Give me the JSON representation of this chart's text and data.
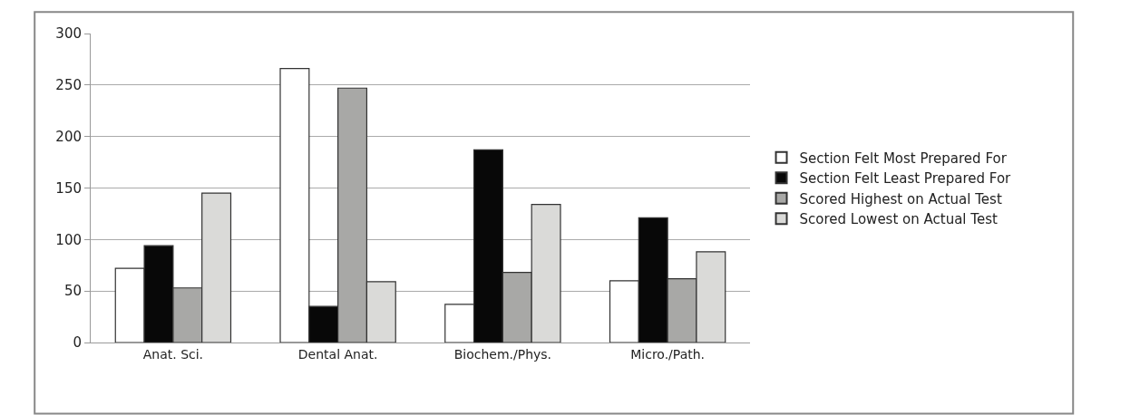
{
  "chart_data": {
    "type": "bar",
    "categories": [
      "Anat. Sci.",
      "Dental Anat.",
      "Biochem./Phys.",
      "Micro./Path."
    ],
    "series": [
      {
        "name": "Section Felt Most Prepared For",
        "color": "#ffffff",
        "values": [
          72,
          266,
          37,
          60
        ]
      },
      {
        "name": "Section Felt Least Prepared For",
        "color": "#080808",
        "values": [
          94,
          35,
          187,
          121
        ]
      },
      {
        "name": "Scored Highest on Actual Test",
        "color": "#a8a8a6",
        "values": [
          53,
          247,
          68,
          62
        ]
      },
      {
        "name": "Scored Lowest on Actual Test",
        "color": "#dadad8",
        "values": [
          145,
          59,
          134,
          88
        ]
      }
    ],
    "ylim": [
      0,
      300
    ],
    "yticks": [
      0,
      50,
      100,
      150,
      200,
      250,
      300
    ],
    "grid": "y",
    "legend": "right"
  }
}
